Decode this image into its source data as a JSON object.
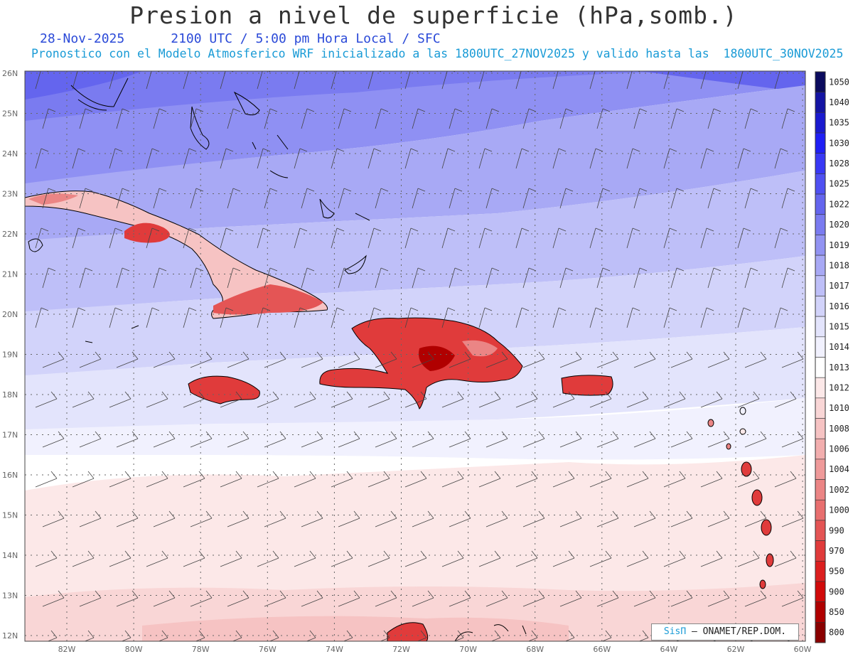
{
  "header": {
    "title": "Presion a nivel de superficie (hPa,somb.)",
    "date": "28-Nov-2025",
    "valid_time": "2100 UTC / 5:00 pm Hora Local / SFC",
    "subtitle": "Pronostico con el Modelo Atmosferico WRF inicializado a las 1800UTC_27NOV2025 y valido hasta las  1800UTC_30NOV2025"
  },
  "map": {
    "lat_labels": [
      "26N",
      "25N",
      "24N",
      "23N",
      "22N",
      "21N",
      "20N",
      "19N",
      "18N",
      "17N",
      "16N",
      "15N",
      "14N",
      "13N",
      "12N"
    ],
    "lon_labels": [
      "82W",
      "80W",
      "78W",
      "76W",
      "74W",
      "72W",
      "70W",
      "68W",
      "66W",
      "64W",
      "62W",
      "60W"
    ],
    "grid": true
  },
  "legend": {
    "levels": [
      "1050",
      "1040",
      "1035",
      "1030",
      "1028",
      "1025",
      "1022",
      "1020",
      "1019",
      "1018",
      "1017",
      "1016",
      "1015",
      "1014",
      "1013",
      "1012",
      "1010",
      "1008",
      "1006",
      "1004",
      "1002",
      "1000",
      "990",
      "970",
      "950",
      "900",
      "850",
      "800"
    ],
    "colors": [
      "#0b0b5e",
      "#1414a3",
      "#1a1acf",
      "#1f1ff5",
      "#3838f5",
      "#4f50f2",
      "#6465ee",
      "#7a7bf0",
      "#9293f2",
      "#a8a9f5",
      "#bebff8",
      "#d2d3fa",
      "#e3e4fc",
      "#f1f1fe",
      "#ffffff",
      "#fce8e8",
      "#f9d6d6",
      "#f6c3c3",
      "#f2aeae",
      "#ef9a9a",
      "#eb8585",
      "#e86f6f",
      "#e45555",
      "#e03b3b",
      "#dc1f1f",
      "#d10a0a",
      "#b00000",
      "#8a0000"
    ]
  },
  "credit": {
    "brand": "SisΠ",
    "text": " – ONAMET/REP.DOM."
  }
}
